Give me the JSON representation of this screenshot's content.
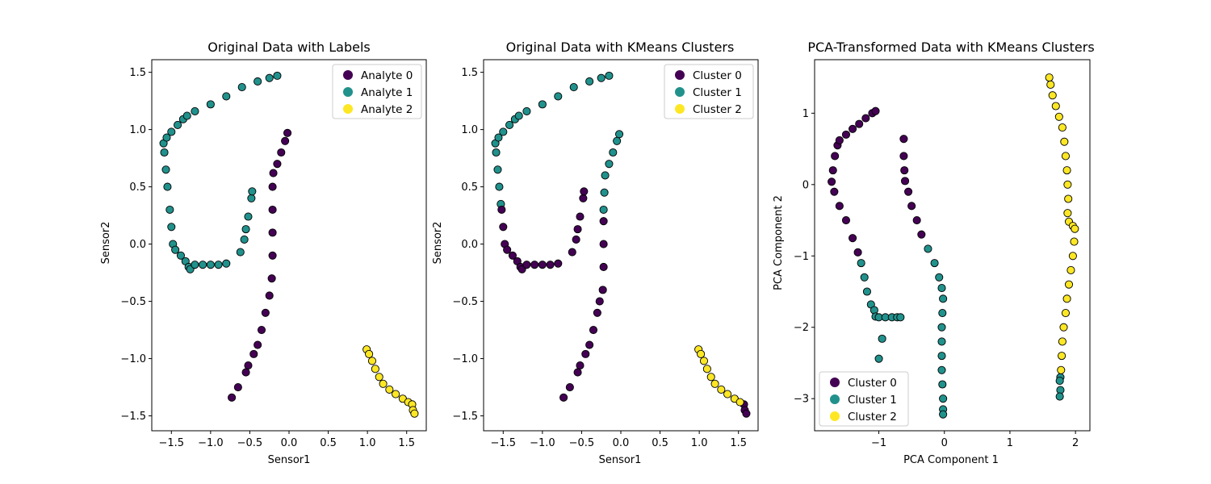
{
  "colors": {
    "purple": "#440154",
    "teal": "#21918c",
    "yellow": "#fde725"
  },
  "chart_data": [
    {
      "type": "scatter",
      "title": "Original Data with Labels",
      "xlabel": "Sensor1",
      "ylabel": "Sensor2",
      "xlim": [
        -1.75,
        1.75
      ],
      "ylim": [
        -1.63,
        1.61
      ],
      "xticks": [
        -1.5,
        -1.0,
        -0.5,
        0.0,
        0.5,
        1.0,
        1.5
      ],
      "xtick_labels": [
        "−1.5",
        "−1.0",
        "−0.5",
        "0.0",
        "0.5",
        "1.0",
        "1.5"
      ],
      "yticks": [
        -1.5,
        -1.0,
        -0.5,
        0.0,
        0.5,
        1.0,
        1.5
      ],
      "ytick_labels": [
        "−1.5",
        "−1.0",
        "−0.5",
        "0.0",
        "0.5",
        "1.0",
        "1.5"
      ],
      "legend_position": "top-right",
      "legend": [
        {
          "label": "Analyte 0",
          "color": "#440154"
        },
        {
          "label": "Analyte 1",
          "color": "#21918c"
        },
        {
          "label": "Analyte 2",
          "color": "#fde725"
        }
      ],
      "series": [
        {
          "name": "Analyte 1",
          "color": "#21918c",
          "points": [
            [
              -1.6,
              0.88
            ],
            [
              -1.56,
              0.93
            ],
            [
              -1.5,
              0.98
            ],
            [
              -1.42,
              1.04
            ],
            [
              -1.35,
              1.09
            ],
            [
              -1.3,
              1.12
            ],
            [
              -1.2,
              1.16
            ],
            [
              -1.0,
              1.22
            ],
            [
              -0.8,
              1.29
            ],
            [
              -0.6,
              1.37
            ],
            [
              -0.4,
              1.42
            ],
            [
              -0.25,
              1.45
            ],
            [
              -0.15,
              1.47
            ],
            [
              -1.59,
              0.8
            ],
            [
              -1.57,
              0.65
            ],
            [
              -1.55,
              0.5
            ],
            [
              -1.52,
              0.3
            ],
            [
              -1.5,
              0.15
            ],
            [
              -1.48,
              0.0
            ],
            [
              -1.45,
              -0.05
            ],
            [
              -1.38,
              -0.1
            ],
            [
              -1.32,
              -0.15
            ],
            [
              -1.28,
              -0.2
            ],
            [
              -1.26,
              -0.22
            ],
            [
              -1.2,
              -0.18
            ],
            [
              -1.1,
              -0.18
            ],
            [
              -1.0,
              -0.18
            ],
            [
              -0.9,
              -0.18
            ],
            [
              -0.8,
              -0.17
            ],
            [
              -0.62,
              -0.07
            ],
            [
              -0.57,
              0.04
            ],
            [
              -0.55,
              0.13
            ],
            [
              -0.52,
              0.24
            ],
            [
              -0.48,
              0.4
            ],
            [
              -0.47,
              0.46
            ]
          ]
        },
        {
          "name": "Analyte 0",
          "color": "#440154",
          "points": [
            [
              -0.02,
              0.97
            ],
            [
              -0.05,
              0.9
            ],
            [
              -0.1,
              0.8
            ],
            [
              -0.15,
              0.7
            ],
            [
              -0.2,
              0.62
            ],
            [
              -0.21,
              0.5
            ],
            [
              -0.21,
              0.3
            ],
            [
              -0.21,
              0.1
            ],
            [
              -0.21,
              -0.1
            ],
            [
              -0.22,
              -0.3
            ],
            [
              -0.25,
              -0.45
            ],
            [
              -0.3,
              -0.6
            ],
            [
              -0.35,
              -0.75
            ],
            [
              -0.4,
              -0.88
            ],
            [
              -0.45,
              -0.96
            ],
            [
              -0.52,
              -1.06
            ],
            [
              -0.55,
              -1.12
            ],
            [
              -0.65,
              -1.25
            ],
            [
              -0.73,
              -1.34
            ]
          ]
        },
        {
          "name": "Analyte 2",
          "color": "#fde725",
          "points": [
            [
              0.99,
              -0.92
            ],
            [
              1.02,
              -0.96
            ],
            [
              1.06,
              -1.02
            ],
            [
              1.1,
              -1.09
            ],
            [
              1.15,
              -1.16
            ],
            [
              1.2,
              -1.22
            ],
            [
              1.28,
              -1.27
            ],
            [
              1.36,
              -1.31
            ],
            [
              1.45,
              -1.35
            ],
            [
              1.52,
              -1.38
            ],
            [
              1.57,
              -1.4
            ],
            [
              1.58,
              -1.45
            ],
            [
              1.6,
              -1.48
            ]
          ]
        }
      ]
    },
    {
      "type": "scatter",
      "title": "Original Data with KMeans Clusters",
      "xlabel": "Sensor1",
      "ylabel": "Sensor2",
      "xlim": [
        -1.75,
        1.75
      ],
      "ylim": [
        -1.63,
        1.61
      ],
      "xticks": [
        -1.5,
        -1.0,
        -0.5,
        0.0,
        0.5,
        1.0,
        1.5
      ],
      "xtick_labels": [
        "−1.5",
        "−1.0",
        "−0.5",
        "0.0",
        "0.5",
        "1.0",
        "1.5"
      ],
      "yticks": [
        -1.5,
        -1.0,
        -0.5,
        0.0,
        0.5,
        1.0,
        1.5
      ],
      "ytick_labels": [
        "−1.5",
        "−1.0",
        "−0.5",
        "0.0",
        "0.5",
        "1.0",
        "1.5"
      ],
      "legend_position": "top-right",
      "legend": [
        {
          "label": "Cluster 0",
          "color": "#440154"
        },
        {
          "label": "Cluster 1",
          "color": "#21918c"
        },
        {
          "label": "Cluster 2",
          "color": "#fde725"
        }
      ],
      "series": [
        {
          "name": "Cluster 1",
          "color": "#21918c",
          "points": [
            [
              -1.6,
              0.88
            ],
            [
              -1.56,
              0.93
            ],
            [
              -1.5,
              0.98
            ],
            [
              -1.42,
              1.04
            ],
            [
              -1.35,
              1.09
            ],
            [
              -1.3,
              1.12
            ],
            [
              -1.2,
              1.16
            ],
            [
              -1.0,
              1.22
            ],
            [
              -0.8,
              1.29
            ],
            [
              -0.6,
              1.37
            ],
            [
              -0.4,
              1.42
            ],
            [
              -0.25,
              1.45
            ],
            [
              -0.15,
              1.47
            ],
            [
              -1.59,
              0.8
            ],
            [
              -1.57,
              0.65
            ],
            [
              -1.55,
              0.5
            ],
            [
              -1.53,
              0.35
            ],
            [
              -0.02,
              0.96
            ],
            [
              -0.05,
              0.9
            ],
            [
              -0.1,
              0.8
            ],
            [
              -0.15,
              0.7
            ],
            [
              -0.2,
              0.6
            ],
            [
              -0.21,
              0.45
            ],
            [
              -0.22,
              0.3
            ]
          ]
        },
        {
          "name": "Cluster 0",
          "color": "#440154",
          "points": [
            [
              -1.52,
              0.3
            ],
            [
              -1.5,
              0.15
            ],
            [
              -1.48,
              0.0
            ],
            [
              -1.45,
              -0.05
            ],
            [
              -1.38,
              -0.1
            ],
            [
              -1.32,
              -0.15
            ],
            [
              -1.28,
              -0.2
            ],
            [
              -1.26,
              -0.22
            ],
            [
              -1.2,
              -0.18
            ],
            [
              -1.1,
              -0.18
            ],
            [
              -1.0,
              -0.18
            ],
            [
              -0.9,
              -0.18
            ],
            [
              -0.8,
              -0.17
            ],
            [
              -0.62,
              -0.07
            ],
            [
              -0.57,
              0.04
            ],
            [
              -0.55,
              0.13
            ],
            [
              -0.52,
              0.24
            ],
            [
              -0.48,
              0.4
            ],
            [
              -0.47,
              0.46
            ],
            [
              -0.22,
              0.2
            ],
            [
              -0.22,
              0.0
            ],
            [
              -0.22,
              -0.2
            ],
            [
              -0.23,
              -0.4
            ],
            [
              -0.27,
              -0.5
            ],
            [
              -0.3,
              -0.6
            ],
            [
              -0.35,
              -0.75
            ],
            [
              -0.4,
              -0.88
            ],
            [
              -0.45,
              -0.96
            ],
            [
              -0.52,
              -1.06
            ],
            [
              -0.55,
              -1.12
            ],
            [
              -0.65,
              -1.25
            ],
            [
              -0.73,
              -1.34
            ],
            [
              1.57,
              -1.4
            ],
            [
              1.58,
              -1.45
            ],
            [
              1.6,
              -1.48
            ]
          ]
        },
        {
          "name": "Cluster 2",
          "color": "#fde725",
          "points": [
            [
              0.99,
              -0.92
            ],
            [
              1.02,
              -0.96
            ],
            [
              1.06,
              -1.02
            ],
            [
              1.1,
              -1.09
            ],
            [
              1.15,
              -1.16
            ],
            [
              1.2,
              -1.22
            ],
            [
              1.28,
              -1.27
            ],
            [
              1.36,
              -1.31
            ],
            [
              1.45,
              -1.35
            ],
            [
              1.52,
              -1.38
            ]
          ]
        }
      ]
    },
    {
      "type": "scatter",
      "title": "PCA-Transformed Data with KMeans Clusters",
      "xlabel": "PCA Component 1",
      "ylabel": "PCA Component 2",
      "xlim": [
        -1.98,
        2.22
      ],
      "ylim": [
        -3.45,
        1.75
      ],
      "xticks": [
        -1,
        0,
        1,
        2
      ],
      "xtick_labels": [
        "−1",
        "0",
        "1",
        "2"
      ],
      "yticks": [
        -3,
        -2,
        -1,
        0,
        1
      ],
      "ytick_labels": [
        "−3",
        "−2",
        "−1",
        "0",
        "1"
      ],
      "legend_position": "lower-left",
      "legend": [
        {
          "label": "Cluster 0",
          "color": "#440154"
        },
        {
          "label": "Cluster 1",
          "color": "#21918c"
        },
        {
          "label": "Cluster 2",
          "color": "#fde725"
        }
      ],
      "series": [
        {
          "name": "Cluster 0",
          "color": "#440154",
          "points": [
            [
              -1.72,
              0.04
            ],
            [
              -1.7,
              0.2
            ],
            [
              -1.67,
              0.4
            ],
            [
              -1.63,
              0.55
            ],
            [
              -1.6,
              0.62
            ],
            [
              -1.5,
              0.7
            ],
            [
              -1.4,
              0.78
            ],
            [
              -1.3,
              0.85
            ],
            [
              -1.2,
              0.93
            ],
            [
              -1.1,
              1.0
            ],
            [
              -1.05,
              1.03
            ],
            [
              -1.68,
              -0.1
            ],
            [
              -1.6,
              -0.3
            ],
            [
              -1.5,
              -0.5
            ],
            [
              -1.4,
              -0.75
            ],
            [
              -1.32,
              -0.95
            ],
            [
              -0.62,
              0.64
            ],
            [
              -0.62,
              0.4
            ],
            [
              -0.61,
              0.2
            ],
            [
              -0.6,
              0.05
            ],
            [
              -0.55,
              -0.1
            ],
            [
              -0.5,
              -0.3
            ],
            [
              -0.42,
              -0.5
            ],
            [
              -0.35,
              -0.7
            ]
          ]
        },
        {
          "name": "Cluster 1",
          "color": "#21918c",
          "points": [
            [
              -1.27,
              -1.1
            ],
            [
              -1.22,
              -1.3
            ],
            [
              -1.18,
              -1.5
            ],
            [
              -1.12,
              -1.68
            ],
            [
              -1.07,
              -1.76
            ],
            [
              -1.05,
              -1.85
            ],
            [
              -1.0,
              -1.86
            ],
            [
              -0.9,
              -1.86
            ],
            [
              -0.8,
              -1.86
            ],
            [
              -0.72,
              -1.86
            ],
            [
              -0.67,
              -1.86
            ],
            [
              -0.95,
              -2.16
            ],
            [
              -1.0,
              -2.44
            ],
            [
              -0.25,
              -0.9
            ],
            [
              -0.15,
              -1.1
            ],
            [
              -0.08,
              -1.3
            ],
            [
              -0.04,
              -1.45
            ],
            [
              -0.02,
              -1.6
            ],
            [
              -0.03,
              -1.8
            ],
            [
              -0.04,
              -2.0
            ],
            [
              -0.04,
              -2.2
            ],
            [
              -0.04,
              -2.4
            ],
            [
              -0.04,
              -2.6
            ],
            [
              -0.03,
              -2.8
            ],
            [
              -0.02,
              -3.0
            ],
            [
              -0.02,
              -3.15
            ],
            [
              -0.02,
              -3.22
            ],
            [
              1.77,
              -2.7
            ],
            [
              1.76,
              -2.75
            ],
            [
              1.77,
              -2.88
            ],
            [
              1.76,
              -2.97
            ]
          ]
        },
        {
          "name": "Cluster 2",
          "color": "#fde725",
          "points": [
            [
              1.6,
              1.5
            ],
            [
              1.62,
              1.4
            ],
            [
              1.65,
              1.25
            ],
            [
              1.7,
              1.1
            ],
            [
              1.75,
              0.95
            ],
            [
              1.8,
              0.8
            ],
            [
              1.83,
              0.6
            ],
            [
              1.85,
              0.4
            ],
            [
              1.87,
              0.2
            ],
            [
              1.88,
              0.0
            ],
            [
              1.89,
              -0.2
            ],
            [
              1.88,
              -0.4
            ],
            [
              1.9,
              -0.52
            ],
            [
              1.96,
              -0.58
            ],
            [
              1.99,
              -0.62
            ],
            [
              1.98,
              -0.8
            ],
            [
              1.96,
              -1.0
            ],
            [
              1.93,
              -1.2
            ],
            [
              1.9,
              -1.4
            ],
            [
              1.87,
              -1.6
            ],
            [
              1.85,
              -1.8
            ],
            [
              1.82,
              -2.0
            ],
            [
              1.8,
              -2.2
            ],
            [
              1.79,
              -2.4
            ],
            [
              1.78,
              -2.6
            ]
          ]
        }
      ]
    }
  ]
}
